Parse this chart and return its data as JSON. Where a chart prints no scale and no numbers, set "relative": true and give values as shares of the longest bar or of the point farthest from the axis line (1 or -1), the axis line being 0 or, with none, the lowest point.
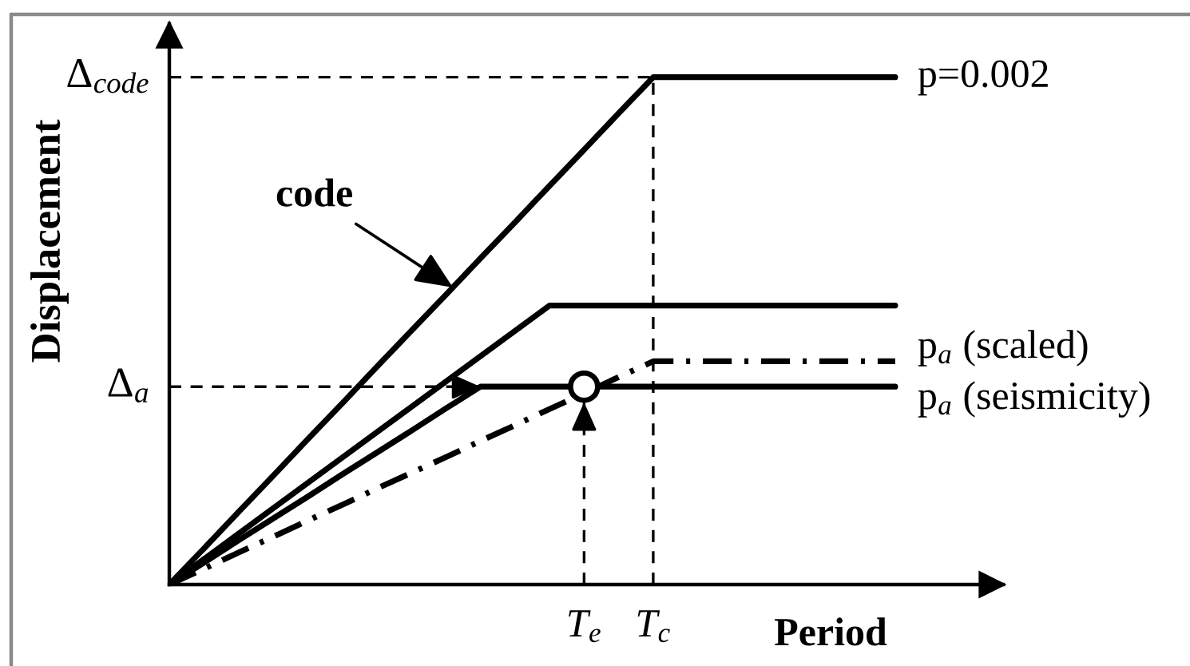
{
  "chart_data": {
    "type": "line",
    "relative": true,
    "xlabel": "Period",
    "ylabel": "Displacement",
    "categories": [
      null,
      null,
      null,
      null,
      null,
      null,
      null,
      null,
      null,
      null,
      null,
      null,
      "T$_{e}$",
      null,
      "T$_{c}$",
      null,
      null,
      null,
      null,
      null,
      null,
      null
    ],
    "series": [
      {
        "name": "p=0.002",
        "color": "#000000",
        "values": [
          0,
          0.071,
          0.143,
          0.214,
          0.286,
          0.357,
          0.429,
          0.5,
          0.571,
          0.643,
          0.714,
          0.786,
          0.857,
          0.929,
          1,
          1,
          1,
          1,
          1,
          1,
          1,
          1
        ]
      },
      {
        "color": "#000000",
        "values": [
          0,
          0.05,
          0.1,
          0.15,
          0.2,
          0.25,
          0.3,
          0.35,
          0.4,
          0.45,
          0.5,
          0.55,
          0.55,
          0.55,
          0.55,
          0.55,
          0.55,
          0.55,
          0.55,
          0.55,
          0.55,
          0.55
        ]
      },
      {
        "name": "p$_{a}$ (scaled)",
        "color": "#000000",
        "line_style": "dashdot",
        "values": [
          0,
          0.031,
          0.063,
          0.094,
          0.126,
          0.157,
          0.189,
          0.22,
          0.251,
          0.283,
          0.314,
          0.346,
          0.377,
          0.409,
          0.44,
          0.44,
          0.44,
          0.44,
          0.44,
          0.44,
          0.44,
          0.44
        ]
      },
      {
        "name": "p$_{a}$ (seismicity)",
        "color": "#000000",
        "values": [
          0,
          0.043,
          0.087,
          0.13,
          0.173,
          0.217,
          0.26,
          0.303,
          0.347,
          0.39,
          0.39,
          0.39,
          0.39,
          0.39,
          0.39,
          0.39,
          0.39,
          0.39,
          0.39,
          0.39,
          0.39,
          0.39
        ]
      },
      {
        "type": "lollipop",
        "color": "#000000",
        "marker": "circle",
        "line_style": "dashed",
        "values": [
          null,
          null,
          null,
          null,
          null,
          null,
          null,
          null,
          null,
          null,
          null,
          null,
          0.39,
          null,
          null,
          null,
          null,
          null,
          null,
          null,
          null,
          null
        ]
      }
    ],
    "ref_lines": [
      {
        "axis": "y",
        "value": 1,
        "label": "Δ$_{code}$",
        "line_style": "dashed"
      },
      {
        "axis": "y",
        "value": 0.39,
        "label": "Δ$_{a}$",
        "line_style": "dashed"
      },
      {
        "axis": "x",
        "value": "T$_{c}$",
        "line_style": "dashed"
      }
    ],
    "annotations": [
      "code"
    ]
  }
}
